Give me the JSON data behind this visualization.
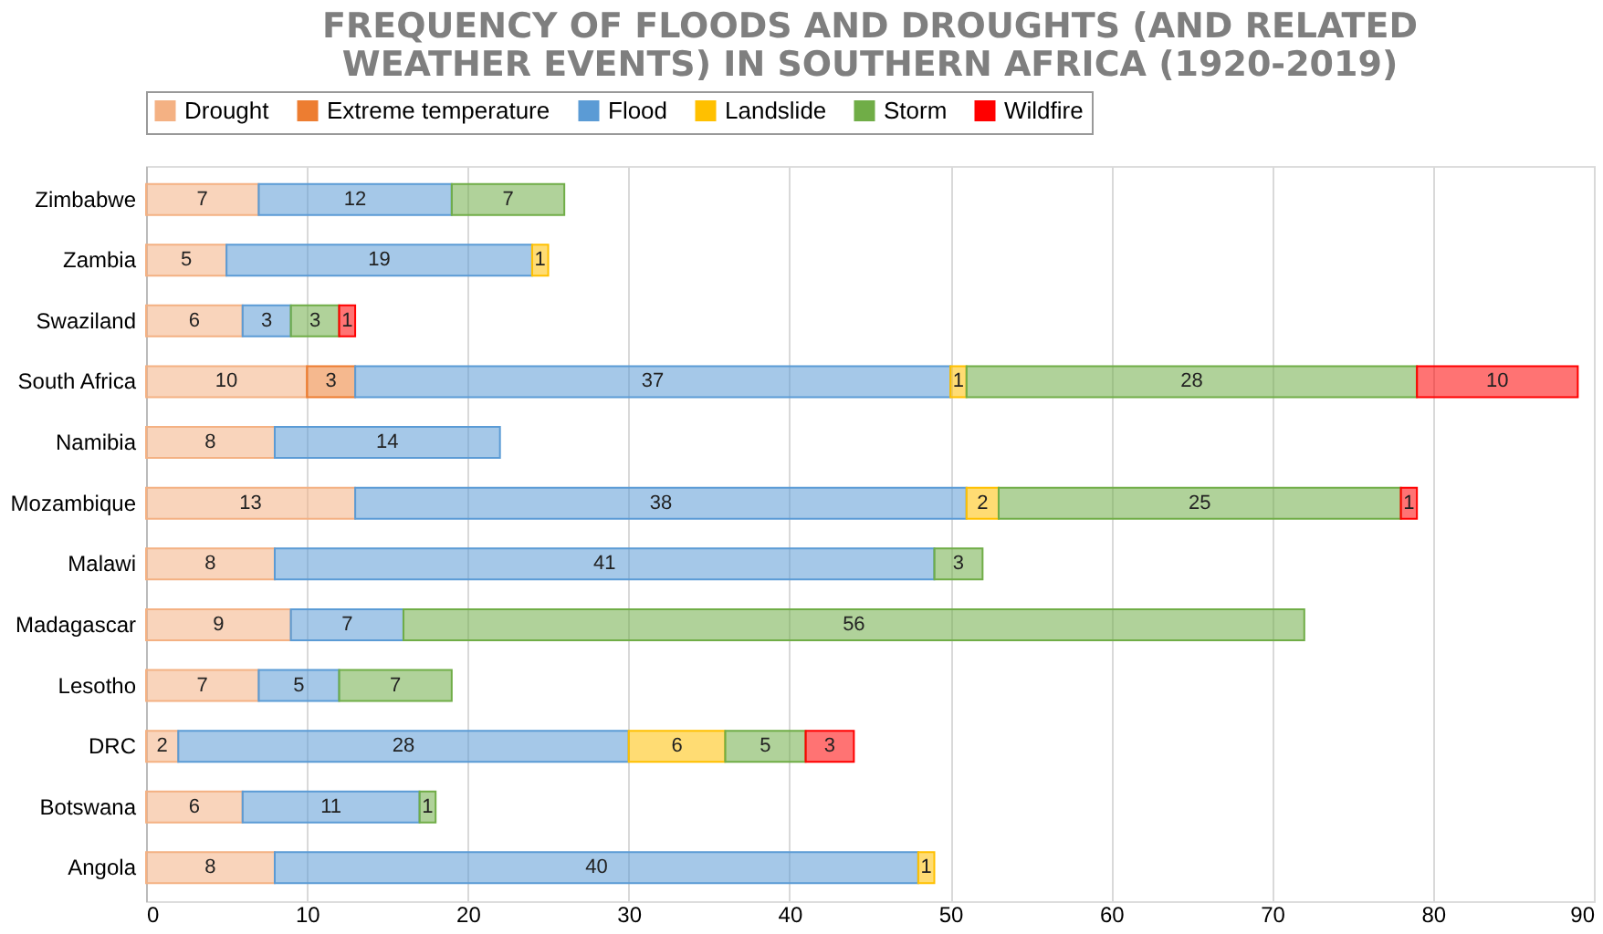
{
  "chart_data": {
    "type": "bar",
    "orientation": "horizontal",
    "stacked": true,
    "title": "FREQUENCY OF FLOODS AND DROUGHTS (AND RELATED WEATHER EVENTS) IN SOUTHERN AFRICA (1920-2019)",
    "categories": [
      "Zimbabwe",
      "Zambia",
      "Swaziland",
      "South Africa",
      "Namibia",
      "Mozambique",
      "Malawi",
      "Madagascar",
      "Lesotho",
      "DRC",
      "Botswana",
      "Angola"
    ],
    "series": [
      {
        "name": "Drought",
        "color": "#f4b183",
        "values": [
          7,
          5,
          6,
          10,
          8,
          13,
          8,
          9,
          7,
          2,
          6,
          8
        ]
      },
      {
        "name": "Extreme temperature",
        "color": "#ed7d31",
        "values": [
          null,
          null,
          null,
          3,
          null,
          null,
          null,
          null,
          null,
          null,
          null,
          null
        ]
      },
      {
        "name": "Flood",
        "color": "#5b9bd5",
        "values": [
          12,
          19,
          3,
          37,
          14,
          38,
          41,
          7,
          5,
          28,
          11,
          40
        ]
      },
      {
        "name": "Landslide",
        "color": "#ffc000",
        "values": [
          null,
          1,
          null,
          1,
          null,
          2,
          null,
          null,
          null,
          6,
          null,
          1
        ]
      },
      {
        "name": "Storm",
        "color": "#70ad47",
        "values": [
          7,
          null,
          3,
          28,
          null,
          25,
          3,
          56,
          7,
          5,
          1,
          null
        ]
      },
      {
        "name": "Wildfire",
        "color": "#ff0000",
        "values": [
          null,
          null,
          1,
          10,
          null,
          1,
          null,
          null,
          null,
          3,
          null,
          null
        ]
      }
    ],
    "xlim": [
      0,
      90
    ],
    "xticks": [
      0,
      10,
      20,
      30,
      40,
      50,
      60,
      70,
      80,
      90
    ],
    "grid": "x",
    "legend": "top",
    "data_labels": true
  }
}
